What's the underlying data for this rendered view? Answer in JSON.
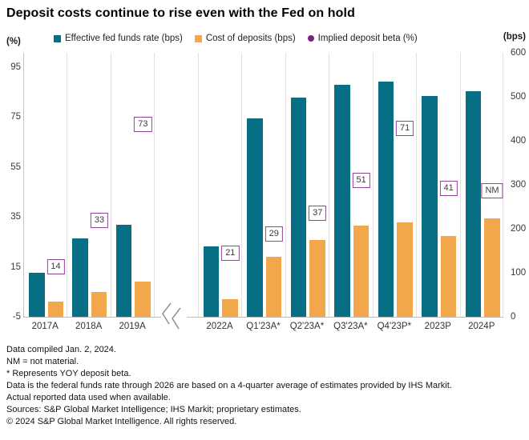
{
  "title": "Deposit costs continue to rise even with the Fed on hold",
  "left_axis_header": "(%)",
  "right_axis_header": "(bps)",
  "legend": [
    {
      "label": "Effective fed funds rate (bps)",
      "color": "#086e84",
      "marker": "square"
    },
    {
      "label": "Cost of deposits (bps)",
      "color": "#f2a74b",
      "marker": "square"
    },
    {
      "label": "Implied deposit beta (%)",
      "color": "#7c2183",
      "marker": "circle"
    }
  ],
  "footnotes": [
    "Data compiled Jan. 2, 2024.",
    "NM = not material.",
    "* Represents YOY deposit beta.",
    "Data is the federal funds rate through 2026 are based on a 4-quarter average of estimates provided by IHS Markit.",
    "Actual reported data used when available.",
    "Sources: S&P Global Market Intelligence; IHS Markit; proprietary estimates.",
    "© 2024 S&P Global Market Intelligence. All rights reserved."
  ],
  "chart_data": {
    "type": "bar",
    "categories": [
      "2017A",
      "2018A",
      "2019A",
      "2022A",
      "Q1'23A*",
      "Q2'23A*",
      "Q3'23A*",
      "Q4'23P*",
      "2023P",
      "2024P"
    ],
    "axis_break_after_index": 2,
    "left_axis": {
      "label": "(%)",
      "ticks": [
        95,
        75,
        55,
        35,
        15,
        -5
      ],
      "min": -5,
      "max": 100.7
    },
    "right_axis": {
      "label": "(bps)",
      "ticks": [
        600,
        500,
        400,
        300,
        200,
        100,
        0
      ],
      "min": 0,
      "max": 600
    },
    "grid": "vertical-category-separators",
    "legend_position": "top",
    "series": [
      {
        "name": "Effective fed funds rate (bps)",
        "type": "bar",
        "axis": "right",
        "color": "#086e84",
        "values": [
          100,
          178,
          210,
          160,
          451,
          499,
          527,
          534,
          502,
          513
        ]
      },
      {
        "name": "Cost of deposits (bps)",
        "type": "bar",
        "axis": "right",
        "color": "#f2a74b",
        "values": [
          34,
          57,
          80,
          40,
          137,
          174,
          207,
          215,
          183,
          223
        ]
      },
      {
        "name": "Implied deposit beta (%)",
        "type": "boxed-label",
        "axis": "left",
        "color": "#7c2183",
        "box_border_color": "#904497",
        "labels": [
          "14",
          "33",
          "73",
          "21",
          "29",
          "37",
          "51",
          "71",
          "41",
          "NM"
        ],
        "values": [
          14,
          33,
          73,
          21,
          29,
          37,
          51,
          71,
          41,
          null
        ],
        "label_positions_pct": [
          15.5,
          34,
          72.5,
          21,
          28.5,
          37,
          50,
          71,
          47,
          46
        ]
      }
    ]
  }
}
